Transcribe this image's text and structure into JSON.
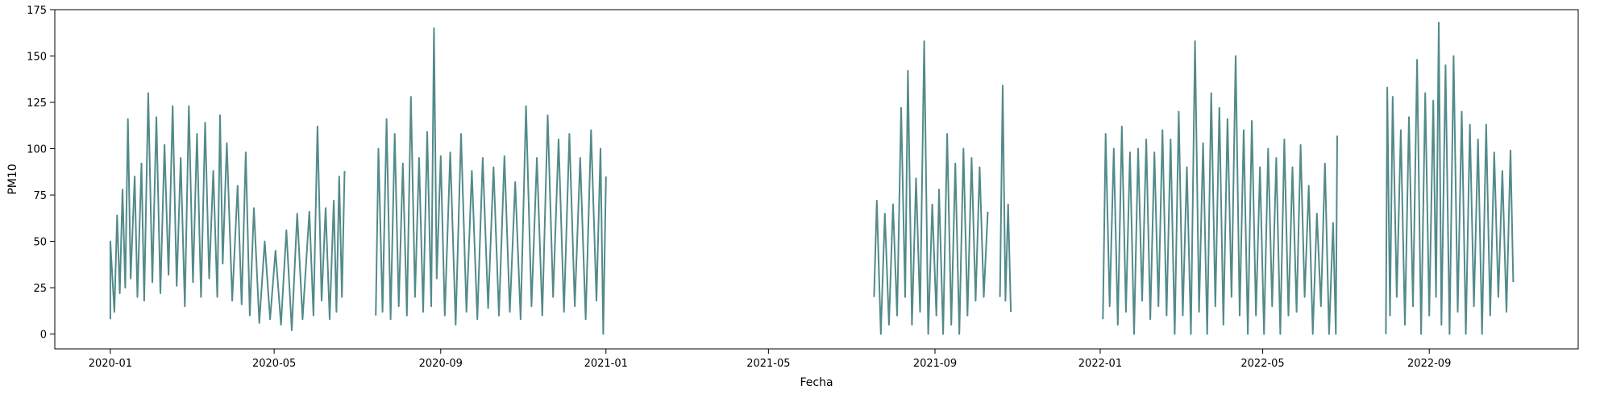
{
  "chart_data": {
    "type": "line",
    "title": "",
    "xlabel": "Fecha",
    "ylabel": "PM10",
    "xlim": [
      "2019-11-21",
      "2022-12-20"
    ],
    "ylim": [
      -8,
      175
    ],
    "x_ticks": [
      "2020-01",
      "2020-05",
      "2020-09",
      "2021-01",
      "2021-05",
      "2021-09",
      "2022-01",
      "2022-05",
      "2022-09"
    ],
    "y_ticks": [
      0,
      25,
      50,
      75,
      100,
      125,
      150,
      175
    ],
    "grid": false,
    "color": "#538a8a",
    "segments": [
      {
        "start": "2020-01-01",
        "end": "2020-06-22",
        "points": [
          [
            "2020-01-01",
            8
          ],
          [
            "2020-01-01",
            50
          ],
          [
            "2020-01-04",
            12
          ],
          [
            "2020-01-06",
            64
          ],
          [
            "2020-01-08",
            22
          ],
          [
            "2020-01-10",
            78
          ],
          [
            "2020-01-12",
            25
          ],
          [
            "2020-01-14",
            116
          ],
          [
            "2020-01-16",
            30
          ],
          [
            "2020-01-19",
            85
          ],
          [
            "2020-01-21",
            20
          ],
          [
            "2020-01-24",
            92
          ],
          [
            "2020-01-26",
            18
          ],
          [
            "2020-01-29",
            130
          ],
          [
            "2020-02-01",
            28
          ],
          [
            "2020-02-04",
            117
          ],
          [
            "2020-02-07",
            22
          ],
          [
            "2020-02-10",
            102
          ],
          [
            "2020-02-13",
            32
          ],
          [
            "2020-02-16",
            123
          ],
          [
            "2020-02-19",
            26
          ],
          [
            "2020-02-22",
            95
          ],
          [
            "2020-02-25",
            15
          ],
          [
            "2020-02-28",
            123
          ],
          [
            "2020-03-02",
            28
          ],
          [
            "2020-03-05",
            108
          ],
          [
            "2020-03-08",
            20
          ],
          [
            "2020-03-11",
            114
          ],
          [
            "2020-03-14",
            30
          ],
          [
            "2020-03-17",
            88
          ],
          [
            "2020-03-20",
            20
          ],
          [
            "2020-03-22",
            118
          ],
          [
            "2020-03-24",
            38
          ],
          [
            "2020-03-27",
            103
          ],
          [
            "2020-03-31",
            18
          ],
          [
            "2020-04-04",
            80
          ],
          [
            "2020-04-07",
            16
          ],
          [
            "2020-04-10",
            98
          ],
          [
            "2020-04-13",
            10
          ],
          [
            "2020-04-16",
            68
          ],
          [
            "2020-04-20",
            6
          ],
          [
            "2020-04-24",
            50
          ],
          [
            "2020-04-28",
            8
          ],
          [
            "2020-05-02",
            45
          ],
          [
            "2020-05-06",
            5
          ],
          [
            "2020-05-10",
            56
          ],
          [
            "2020-05-14",
            2
          ],
          [
            "2020-05-18",
            65
          ],
          [
            "2020-05-22",
            8
          ],
          [
            "2020-05-27",
            66
          ],
          [
            "2020-05-30",
            10
          ],
          [
            "2020-06-02",
            112
          ],
          [
            "2020-06-05",
            18
          ],
          [
            "2020-06-08",
            68
          ],
          [
            "2020-06-11",
            8
          ],
          [
            "2020-06-14",
            72
          ],
          [
            "2020-06-16",
            12
          ],
          [
            "2020-06-18",
            85
          ],
          [
            "2020-06-20",
            20
          ],
          [
            "2020-06-22",
            88
          ]
        ]
      },
      {
        "start": "2020-07-15",
        "end": "2021-01-01",
        "points": [
          [
            "2020-07-15",
            10
          ],
          [
            "2020-07-17",
            100
          ],
          [
            "2020-07-20",
            12
          ],
          [
            "2020-07-23",
            116
          ],
          [
            "2020-07-26",
            8
          ],
          [
            "2020-07-29",
            108
          ],
          [
            "2020-08-01",
            15
          ],
          [
            "2020-08-04",
            92
          ],
          [
            "2020-08-07",
            10
          ],
          [
            "2020-08-10",
            128
          ],
          [
            "2020-08-13",
            20
          ],
          [
            "2020-08-16",
            95
          ],
          [
            "2020-08-19",
            12
          ],
          [
            "2020-08-22",
            109
          ],
          [
            "2020-08-25",
            15
          ],
          [
            "2020-08-27",
            165
          ],
          [
            "2020-08-29",
            30
          ],
          [
            "2020-09-01",
            96
          ],
          [
            "2020-09-04",
            10
          ],
          [
            "2020-09-08",
            98
          ],
          [
            "2020-09-12",
            5
          ],
          [
            "2020-09-16",
            108
          ],
          [
            "2020-09-20",
            12
          ],
          [
            "2020-09-24",
            88
          ],
          [
            "2020-09-28",
            8
          ],
          [
            "2020-10-02",
            95
          ],
          [
            "2020-10-06",
            14
          ],
          [
            "2020-10-10",
            90
          ],
          [
            "2020-10-14",
            10
          ],
          [
            "2020-10-18",
            96
          ],
          [
            "2020-10-22",
            12
          ],
          [
            "2020-10-26",
            82
          ],
          [
            "2020-10-30",
            8
          ],
          [
            "2020-11-03",
            123
          ],
          [
            "2020-11-07",
            15
          ],
          [
            "2020-11-11",
            95
          ],
          [
            "2020-11-15",
            10
          ],
          [
            "2020-11-19",
            118
          ],
          [
            "2020-11-23",
            20
          ],
          [
            "2020-11-27",
            105
          ],
          [
            "2020-12-01",
            12
          ],
          [
            "2020-12-05",
            108
          ],
          [
            "2020-12-09",
            15
          ],
          [
            "2020-12-13",
            95
          ],
          [
            "2020-12-17",
            8
          ],
          [
            "2020-12-21",
            110
          ],
          [
            "2020-12-25",
            18
          ],
          [
            "2020-12-28",
            100
          ],
          [
            "2020-12-30",
            0
          ],
          [
            "2021-01-01",
            85
          ]
        ]
      },
      {
        "start": "2021-07-18",
        "end": "2021-10-10",
        "points": [
          [
            "2021-07-18",
            20
          ],
          [
            "2021-07-20",
            72
          ],
          [
            "2021-07-23",
            0
          ],
          [
            "2021-07-26",
            65
          ],
          [
            "2021-07-29",
            5
          ],
          [
            "2021-08-01",
            70
          ],
          [
            "2021-08-04",
            10
          ],
          [
            "2021-08-07",
            122
          ],
          [
            "2021-08-10",
            20
          ],
          [
            "2021-08-12",
            142
          ],
          [
            "2021-08-15",
            5
          ],
          [
            "2021-08-18",
            84
          ],
          [
            "2021-08-21",
            12
          ],
          [
            "2021-08-24",
            158
          ],
          [
            "2021-08-27",
            0
          ],
          [
            "2021-08-30",
            70
          ],
          [
            "2021-09-02",
            10
          ],
          [
            "2021-09-04",
            78
          ],
          [
            "2021-09-07",
            0
          ],
          [
            "2021-09-10",
            108
          ],
          [
            "2021-09-13",
            5
          ],
          [
            "2021-09-16",
            92
          ],
          [
            "2021-09-19",
            0
          ],
          [
            "2021-09-22",
            100
          ],
          [
            "2021-09-25",
            10
          ],
          [
            "2021-09-28",
            95
          ],
          [
            "2021-10-01",
            18
          ],
          [
            "2021-10-04",
            90
          ],
          [
            "2021-10-07",
            20
          ],
          [
            "2021-10-10",
            66
          ]
        ]
      },
      {
        "start": "2021-10-19",
        "end": "2021-10-27",
        "points": [
          [
            "2021-10-19",
            20
          ],
          [
            "2021-10-21",
            134
          ],
          [
            "2021-10-23",
            18
          ],
          [
            "2021-10-25",
            70
          ],
          [
            "2021-10-27",
            12
          ]
        ]
      },
      {
        "start": "2022-01-03",
        "end": "2022-06-25",
        "points": [
          [
            "2022-01-03",
            8
          ],
          [
            "2022-01-05",
            108
          ],
          [
            "2022-01-08",
            15
          ],
          [
            "2022-01-11",
            100
          ],
          [
            "2022-01-14",
            5
          ],
          [
            "2022-01-17",
            112
          ],
          [
            "2022-01-20",
            12
          ],
          [
            "2022-01-23",
            98
          ],
          [
            "2022-01-26",
            0
          ],
          [
            "2022-01-29",
            100
          ],
          [
            "2022-02-01",
            18
          ],
          [
            "2022-02-04",
            105
          ],
          [
            "2022-02-07",
            8
          ],
          [
            "2022-02-10",
            98
          ],
          [
            "2022-02-13",
            15
          ],
          [
            "2022-02-16",
            110
          ],
          [
            "2022-02-19",
            10
          ],
          [
            "2022-02-22",
            105
          ],
          [
            "2022-02-25",
            0
          ],
          [
            "2022-02-28",
            120
          ],
          [
            "2022-03-03",
            10
          ],
          [
            "2022-03-06",
            90
          ],
          [
            "2022-03-09",
            0
          ],
          [
            "2022-03-12",
            158
          ],
          [
            "2022-03-15",
            12
          ],
          [
            "2022-03-18",
            103
          ],
          [
            "2022-03-21",
            0
          ],
          [
            "2022-03-24",
            130
          ],
          [
            "2022-03-27",
            15
          ],
          [
            "2022-03-30",
            122
          ],
          [
            "2022-04-02",
            5
          ],
          [
            "2022-04-05",
            116
          ],
          [
            "2022-04-08",
            20
          ],
          [
            "2022-04-11",
            150
          ],
          [
            "2022-04-14",
            10
          ],
          [
            "2022-04-17",
            110
          ],
          [
            "2022-04-20",
            0
          ],
          [
            "2022-04-23",
            115
          ],
          [
            "2022-04-26",
            10
          ],
          [
            "2022-04-29",
            90
          ],
          [
            "2022-05-02",
            0
          ],
          [
            "2022-05-05",
            100
          ],
          [
            "2022-05-08",
            15
          ],
          [
            "2022-05-11",
            95
          ],
          [
            "2022-05-14",
            0
          ],
          [
            "2022-05-17",
            105
          ],
          [
            "2022-05-20",
            10
          ],
          [
            "2022-05-23",
            90
          ],
          [
            "2022-05-26",
            12
          ],
          [
            "2022-05-29",
            102
          ],
          [
            "2022-06-01",
            20
          ],
          [
            "2022-06-04",
            80
          ],
          [
            "2022-06-07",
            0
          ],
          [
            "2022-06-10",
            65
          ],
          [
            "2022-06-13",
            15
          ],
          [
            "2022-06-16",
            92
          ],
          [
            "2022-06-19",
            0
          ],
          [
            "2022-06-22",
            60
          ],
          [
            "2022-06-24",
            0
          ],
          [
            "2022-06-25",
            107
          ]
        ]
      },
      {
        "start": "2022-07-31",
        "end": "2022-11-02",
        "points": [
          [
            "2022-07-31",
            0
          ],
          [
            "2022-08-01",
            133
          ],
          [
            "2022-08-03",
            10
          ],
          [
            "2022-08-05",
            128
          ],
          [
            "2022-08-08",
            20
          ],
          [
            "2022-08-11",
            110
          ],
          [
            "2022-08-14",
            5
          ],
          [
            "2022-08-17",
            117
          ],
          [
            "2022-08-20",
            15
          ],
          [
            "2022-08-23",
            148
          ],
          [
            "2022-08-26",
            0
          ],
          [
            "2022-08-29",
            130
          ],
          [
            "2022-09-01",
            10
          ],
          [
            "2022-09-04",
            126
          ],
          [
            "2022-09-06",
            20
          ],
          [
            "2022-09-08",
            168
          ],
          [
            "2022-09-10",
            5
          ],
          [
            "2022-09-13",
            145
          ],
          [
            "2022-09-16",
            0
          ],
          [
            "2022-09-19",
            150
          ],
          [
            "2022-09-22",
            12
          ],
          [
            "2022-09-25",
            120
          ],
          [
            "2022-09-28",
            0
          ],
          [
            "2022-10-01",
            113
          ],
          [
            "2022-10-04",
            15
          ],
          [
            "2022-10-07",
            105
          ],
          [
            "2022-10-10",
            0
          ],
          [
            "2022-10-13",
            113
          ],
          [
            "2022-10-16",
            10
          ],
          [
            "2022-10-19",
            98
          ],
          [
            "2022-10-22",
            20
          ],
          [
            "2022-10-25",
            88
          ],
          [
            "2022-10-28",
            12
          ],
          [
            "2022-10-31",
            99
          ],
          [
            "2022-11-02",
            28
          ]
        ]
      }
    ]
  }
}
